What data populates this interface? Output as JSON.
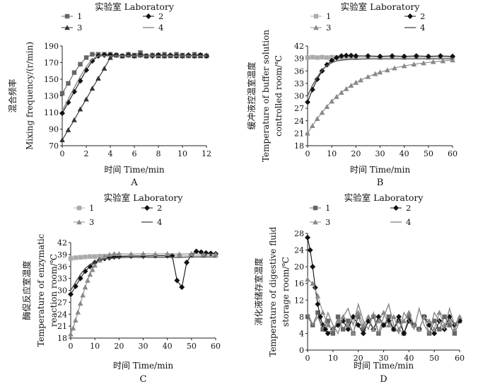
{
  "chart_data": [
    {
      "id": "A",
      "type": "line",
      "panel_label": "A",
      "title": "实验室 Laboratory",
      "xlabel": "时间 Time/min",
      "ylabel": [
        "混合频率",
        "Mixing frequency/(r/min)"
      ],
      "xlim": [
        0,
        12
      ],
      "ylim": [
        70,
        190
      ],
      "xticks": [
        0,
        2,
        4,
        6,
        8,
        10,
        12
      ],
      "yticks": [
        70,
        90,
        110,
        130,
        150,
        170,
        190
      ],
      "legend_position": "top",
      "series": [
        {
          "name": "1",
          "marker": "square",
          "color": "#666666",
          "x": [
            0,
            0.5,
            1,
            1.5,
            2,
            2.5,
            3,
            3.5,
            4,
            4.5,
            5,
            5.5,
            6,
            6.5,
            7,
            7.5,
            8,
            8.5,
            9,
            9.5,
            10,
            10.5,
            11,
            11.5,
            12
          ],
          "y": [
            133,
            145,
            158,
            168,
            176,
            180,
            180,
            180,
            180,
            179,
            178,
            180,
            179,
            182,
            178,
            179,
            179,
            180,
            178,
            180,
            179,
            178,
            180,
            179,
            178
          ]
        },
        {
          "name": "2",
          "marker": "diamond",
          "color": "#111111",
          "x": [
            0,
            0.5,
            1,
            1.5,
            2,
            2.5,
            3,
            3.5,
            4,
            4.5,
            5,
            5.5,
            6,
            6.5,
            7,
            7.5,
            8,
            8.5,
            9,
            9.5,
            10,
            10.5,
            11,
            11.5,
            12
          ],
          "y": [
            109,
            122,
            135,
            148,
            161,
            172,
            178,
            179,
            179,
            179,
            178,
            179,
            178,
            179,
            178,
            178,
            179,
            178,
            179,
            178,
            178,
            179,
            178,
            179,
            178
          ]
        },
        {
          "name": "3",
          "marker": "triangle",
          "color": "#333333",
          "x": [
            0,
            0.5,
            1,
            1.5,
            2,
            2.5,
            3,
            3.5,
            4,
            4.5,
            5,
            5.5,
            6,
            6.5,
            7,
            7.5,
            8,
            8.5,
            9,
            9.5,
            10,
            10.5,
            11,
            11.5,
            12
          ],
          "y": [
            77,
            89,
            101,
            114,
            126,
            139,
            151,
            163,
            176,
            179,
            178,
            179,
            178,
            179,
            178,
            179,
            178,
            178,
            179,
            178,
            178,
            179,
            178,
            178,
            179
          ]
        },
        {
          "name": "4",
          "marker": "none",
          "color": "#888888",
          "x": [
            0,
            0.5,
            1,
            1.5,
            2,
            2.5,
            3,
            3.5,
            4,
            4.5,
            5,
            5.5,
            6,
            6.5,
            7,
            7.5,
            8,
            8.5,
            9,
            9.5,
            10,
            10.5,
            11,
            11.5,
            12
          ],
          "y": [
            112,
            126,
            140,
            153,
            165,
            174,
            178,
            178,
            178,
            178,
            178,
            178,
            178,
            178,
            178,
            178,
            178,
            178,
            178,
            178,
            178,
            178,
            178,
            178,
            178
          ]
        }
      ]
    },
    {
      "id": "B",
      "type": "line",
      "panel_label": "B",
      "title": "实验室 Laboratory",
      "xlabel": "时间 Time/min",
      "ylabel": [
        "缓冲液控温室温度",
        "Temperature of buffer solution",
        "controlled room/℃"
      ],
      "xlim": [
        0,
        60
      ],
      "ylim": [
        18,
        42
      ],
      "xticks": [
        0,
        10,
        20,
        30,
        40,
        50,
        60
      ],
      "yticks": [
        18,
        21,
        24,
        27,
        30,
        33,
        36,
        39,
        42
      ],
      "legend_position": "top",
      "series": [
        {
          "name": "1",
          "marker": "square",
          "color": "#aaaaaa",
          "x": [
            0,
            2,
            4,
            6,
            8,
            10,
            12,
            14,
            16,
            18,
            20,
            25,
            30,
            35,
            40,
            45,
            50,
            55,
            60
          ],
          "y": [
            39.2,
            39.3,
            39.2,
            39.3,
            39.2,
            39.3,
            39.2,
            39.3,
            39.2,
            39.3,
            39.2,
            39.3,
            39.2,
            39.3,
            39.2,
            39.3,
            39.2,
            39.3,
            39.2
          ]
        },
        {
          "name": "2",
          "marker": "diamond",
          "color": "#111111",
          "x": [
            0,
            2,
            4,
            6,
            8,
            10,
            12,
            14,
            16,
            18,
            20,
            25,
            30,
            35,
            40,
            45,
            50,
            55,
            60
          ],
          "y": [
            28.5,
            31.5,
            34.0,
            36.0,
            37.5,
            38.5,
            39.2,
            39.6,
            39.7,
            39.7,
            39.6,
            39.6,
            39.5,
            39.6,
            39.5,
            39.6,
            39.5,
            39.6,
            39.5
          ]
        },
        {
          "name": "3",
          "marker": "triangle",
          "color": "#888888",
          "x": [
            0,
            2,
            4,
            6,
            8,
            10,
            12,
            14,
            16,
            18,
            20,
            22,
            25,
            28,
            30,
            33,
            36,
            40,
            44,
            48,
            52,
            56,
            60
          ],
          "y": [
            21.0,
            22.8,
            24.5,
            26.0,
            27.4,
            28.7,
            29.8,
            30.8,
            31.7,
            32.5,
            33.2,
            33.8,
            34.6,
            35.3,
            35.7,
            36.2,
            36.7,
            37.2,
            37.6,
            37.9,
            38.2,
            38.4,
            38.6
          ]
        },
        {
          "name": "4",
          "marker": "none",
          "color": "#555555",
          "x": [
            0,
            2,
            4,
            6,
            8,
            10,
            12,
            14,
            16,
            18,
            20,
            25,
            30,
            35,
            40,
            45,
            50,
            55,
            60
          ],
          "y": [
            30.0,
            32.5,
            34.5,
            36.2,
            37.3,
            38.0,
            38.4,
            38.6,
            38.7,
            38.8,
            38.8,
            38.9,
            38.9,
            38.9,
            38.9,
            38.9,
            38.9,
            38.9,
            38.9
          ]
        }
      ]
    },
    {
      "id": "C",
      "type": "line",
      "panel_label": "C",
      "title": "实验室 Laboratory",
      "xlabel": "时间 Time/min",
      "ylabel": [
        "酶促反应室温度",
        "Temperature of enzymatic",
        "reaction room/℃"
      ],
      "xlim": [
        0,
        60
      ],
      "ylim": [
        18,
        42
      ],
      "xticks": [
        0,
        10,
        20,
        30,
        40,
        50,
        60
      ],
      "yticks": [
        18,
        21,
        24,
        27,
        30,
        33,
        36,
        39,
        42
      ],
      "legend_position": "top",
      "series": [
        {
          "name": "1",
          "marker": "square",
          "color": "#aaaaaa",
          "x": [
            0,
            2,
            4,
            6,
            8,
            10,
            12,
            14,
            16,
            18,
            20,
            25,
            30,
            35,
            40,
            45,
            50,
            55,
            60
          ],
          "y": [
            38.0,
            38.2,
            38.3,
            38.4,
            38.5,
            38.5,
            38.6,
            38.6,
            38.6,
            38.7,
            38.7,
            38.7,
            38.7,
            38.7,
            38.7,
            38.7,
            38.7,
            38.7,
            38.7
          ]
        },
        {
          "name": "2",
          "marker": "diamond",
          "color": "#111111",
          "x": [
            0,
            2,
            4,
            6,
            8,
            10,
            12,
            14,
            16,
            18,
            20,
            25,
            30,
            35,
            40,
            42,
            44,
            46,
            48,
            50,
            52,
            54,
            56,
            58,
            60
          ],
          "y": [
            29.0,
            31.0,
            33.0,
            34.8,
            36.0,
            37.0,
            37.6,
            38.0,
            38.2,
            38.4,
            38.5,
            38.6,
            38.6,
            38.7,
            38.7,
            38.7,
            32.5,
            30.8,
            37.0,
            39.0,
            39.8,
            39.6,
            39.4,
            39.3,
            39.2
          ]
        },
        {
          "name": "3",
          "marker": "triangle",
          "color": "#888888",
          "x": [
            0,
            1,
            2,
            3,
            4,
            5,
            6,
            7,
            8,
            9,
            10,
            12,
            14,
            16,
            18,
            20,
            25,
            30,
            35,
            40,
            45,
            50,
            55,
            60
          ],
          "y": [
            19.0,
            20.5,
            22.5,
            24.5,
            26.7,
            28.8,
            30.8,
            32.5,
            34.0,
            35.2,
            36.3,
            37.6,
            38.5,
            39.0,
            39.2,
            39.2,
            39.1,
            39.2,
            39.1,
            39.2,
            39.1,
            39.2,
            39.1,
            39.1
          ]
        },
        {
          "name": "4",
          "marker": "none",
          "color": "#555555",
          "x": [
            0,
            2,
            4,
            6,
            8,
            10,
            12,
            14,
            16,
            18,
            20,
            25,
            30,
            35,
            40,
            45,
            50,
            55,
            60
          ],
          "y": [
            30.0,
            32.0,
            34.0,
            35.5,
            36.5,
            37.2,
            37.6,
            37.9,
            38.0,
            38.1,
            38.2,
            38.3,
            38.3,
            38.3,
            38.3,
            38.3,
            38.4,
            38.4,
            38.4
          ]
        }
      ]
    },
    {
      "id": "D",
      "type": "line",
      "panel_label": "D",
      "title": "实验室 Laboratory",
      "xlabel": "时间 Time/min",
      "ylabel": [
        "消化液储存室温度",
        "Temperature of digestive fluid",
        "storage room/℃"
      ],
      "xlim": [
        0,
        60
      ],
      "ylim": [
        0,
        28
      ],
      "xticks": [
        0,
        10,
        20,
        30,
        40,
        50,
        60
      ],
      "yticks": [
        0,
        4,
        8,
        12,
        16,
        20,
        24,
        28
      ],
      "legend_position": "top",
      "series": [
        {
          "name": "1",
          "marker": "square",
          "color": "#666666",
          "x": [
            0,
            2,
            4,
            6,
            8,
            10,
            12,
            14,
            16,
            18,
            20,
            22,
            24,
            26,
            28,
            30,
            32,
            34,
            36,
            38,
            40,
            42,
            44,
            46,
            48,
            50,
            52,
            54,
            56,
            58,
            60
          ],
          "y": [
            8,
            6,
            9,
            5,
            7,
            4,
            8,
            5,
            7,
            4,
            8,
            5,
            7,
            8,
            4,
            6,
            8,
            5,
            7,
            4,
            8,
            6,
            5,
            8,
            4,
            7,
            5,
            8,
            6,
            4,
            7
          ]
        },
        {
          "name": "2",
          "marker": "diamond",
          "color": "#111111",
          "x": [
            0,
            1,
            2,
            3,
            4,
            5,
            6,
            7,
            8,
            10,
            12,
            14,
            16,
            18,
            20,
            22,
            24,
            26,
            28,
            30,
            32,
            34,
            36,
            38,
            40,
            42,
            44,
            46,
            48,
            50,
            52,
            54,
            56,
            58,
            60
          ],
          "y": [
            27,
            24,
            20,
            15,
            11,
            8,
            6,
            5,
            4,
            5,
            6,
            7,
            5,
            8,
            6,
            4,
            7,
            5,
            8,
            6,
            7,
            5,
            8,
            4,
            7,
            6,
            5,
            8,
            6,
            4,
            7,
            5,
            8,
            6,
            7
          ]
        },
        {
          "name": "3",
          "marker": "triangle",
          "color": "#888888",
          "x": [
            0,
            2,
            4,
            6,
            8,
            10,
            12,
            14,
            16,
            18,
            20,
            22,
            24,
            26,
            28,
            30,
            32,
            34,
            36,
            38,
            40,
            42,
            44,
            46,
            48,
            50,
            52,
            54,
            56,
            58,
            60
          ],
          "y": [
            17,
            16,
            13,
            9,
            6,
            5,
            7,
            8,
            6,
            4,
            9,
            6,
            8,
            5,
            7,
            9,
            6,
            8,
            5,
            7,
            9,
            6,
            5,
            8,
            7,
            5,
            9,
            6,
            7,
            5,
            8
          ]
        },
        {
          "name": "4",
          "marker": "none",
          "color": "#888888",
          "x": [
            0,
            2,
            4,
            6,
            8,
            10,
            12,
            14,
            16,
            18,
            20,
            22,
            24,
            26,
            28,
            30,
            32,
            34,
            36,
            38,
            40,
            42,
            44,
            46,
            48,
            50,
            52,
            54,
            56,
            58,
            60
          ],
          "y": [
            9,
            6,
            8,
            5,
            9,
            6,
            4,
            8,
            10,
            6,
            11,
            7,
            5,
            9,
            4,
            8,
            11,
            6,
            4,
            9,
            7,
            5,
            10,
            6,
            4,
            9,
            7,
            5,
            10,
            6,
            8
          ]
        }
      ]
    }
  ]
}
